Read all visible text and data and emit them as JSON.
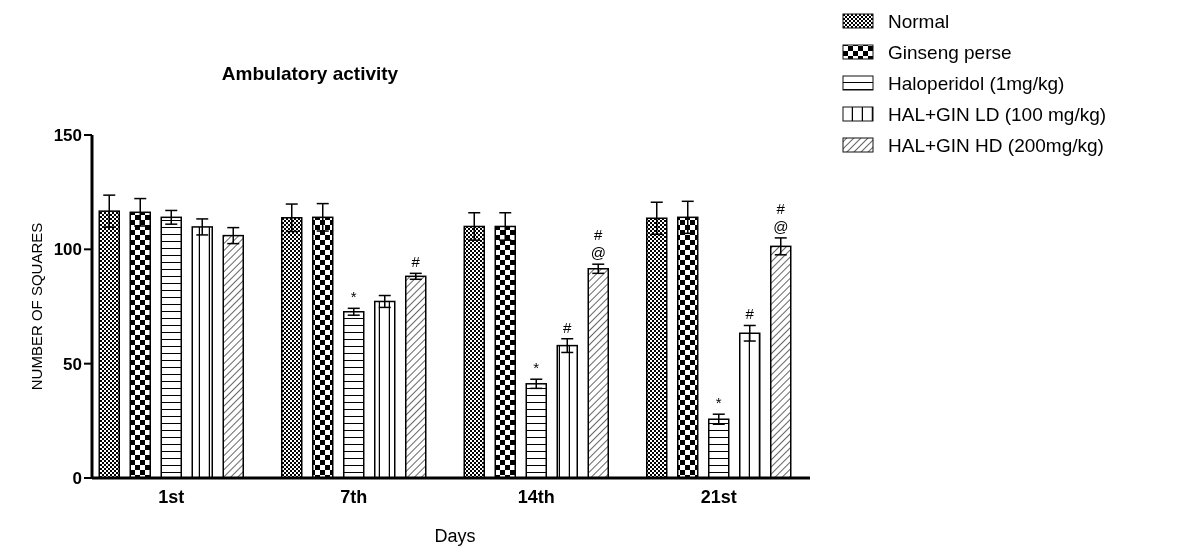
{
  "chart_data": {
    "type": "bar",
    "title": "Ambulatory activity",
    "xlabel": "Days",
    "ylabel": "NUMBER OF SQUARES",
    "categories": [
      "1st",
      "7th",
      "14th",
      "21st"
    ],
    "series": [
      {
        "name": "Normal",
        "color": "#000000",
        "values": [
          116.7,
          113.8,
          110,
          113.6
        ],
        "errors": [
          7,
          6,
          6,
          7
        ]
      },
      {
        "name": "Ginseng perse",
        "color": "#000000",
        "values": [
          116.2,
          114,
          110,
          114
        ],
        "errors": [
          6,
          6,
          6,
          7
        ]
      },
      {
        "name": "Haloperidol (1mg/kg)",
        "color": "#000000",
        "values": [
          114,
          72.7,
          41.2,
          25.7
        ],
        "errors": [
          3,
          1.5,
          2,
          2.2
        ],
        "value_labels": [
          null,
          "*",
          "*",
          "*"
        ]
      },
      {
        "name": "HAL+GIN LD (100 mg/kg)",
        "color": "#000000",
        "values": [
          109.8,
          77.2,
          57.9,
          63.3
        ],
        "errors": [
          3.5,
          2.6,
          3,
          3.4
        ],
        "value_labels": [
          null,
          null,
          "#",
          "#"
        ]
      },
      {
        "name": "HAL+GIN HD (200mg/kg)",
        "color": "#000000",
        "values": [
          106,
          88.2,
          91.5,
          101.3
        ],
        "errors": [
          3.5,
          1.3,
          2,
          3.7
        ],
        "value_labels": [
          null,
          "#",
          "#\n@",
          "#\n@"
        ]
      }
    ],
    "ylim": [
      0,
      150
    ],
    "yticks": [
      0,
      50,
      100,
      150
    ],
    "grid": false,
    "legend": "top right"
  }
}
